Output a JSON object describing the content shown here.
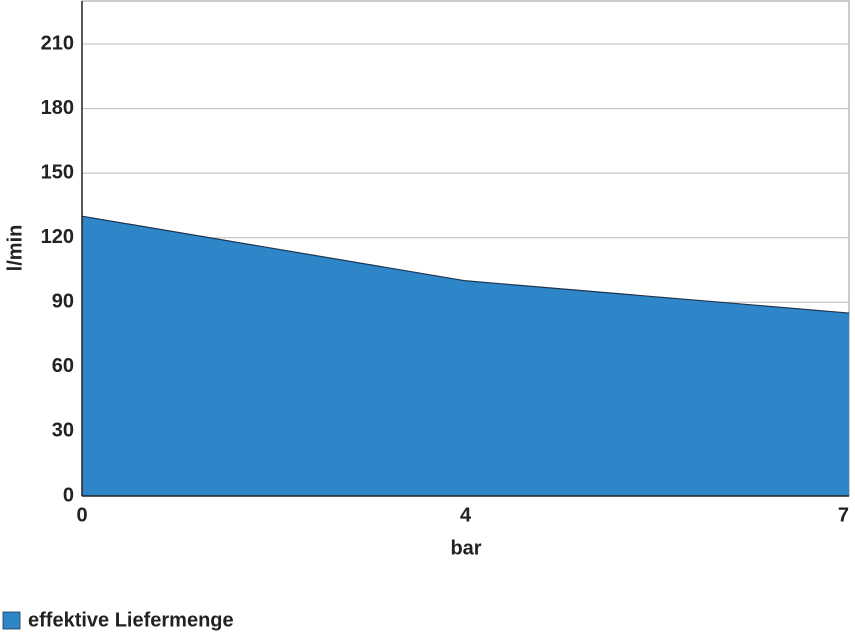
{
  "chart_data": {
    "type": "area",
    "x_label": "bar",
    "y_label": "l/min",
    "categories": [
      "0",
      "4",
      "7"
    ],
    "series": [
      {
        "name": "effektive Liefermenge",
        "color": "#2e86c8",
        "values": [
          130,
          100,
          85
        ]
      }
    ],
    "ylim": [
      0,
      230
    ],
    "yticks": [
      0,
      30,
      60,
      90,
      120,
      150,
      180,
      210
    ],
    "grid": true
  }
}
